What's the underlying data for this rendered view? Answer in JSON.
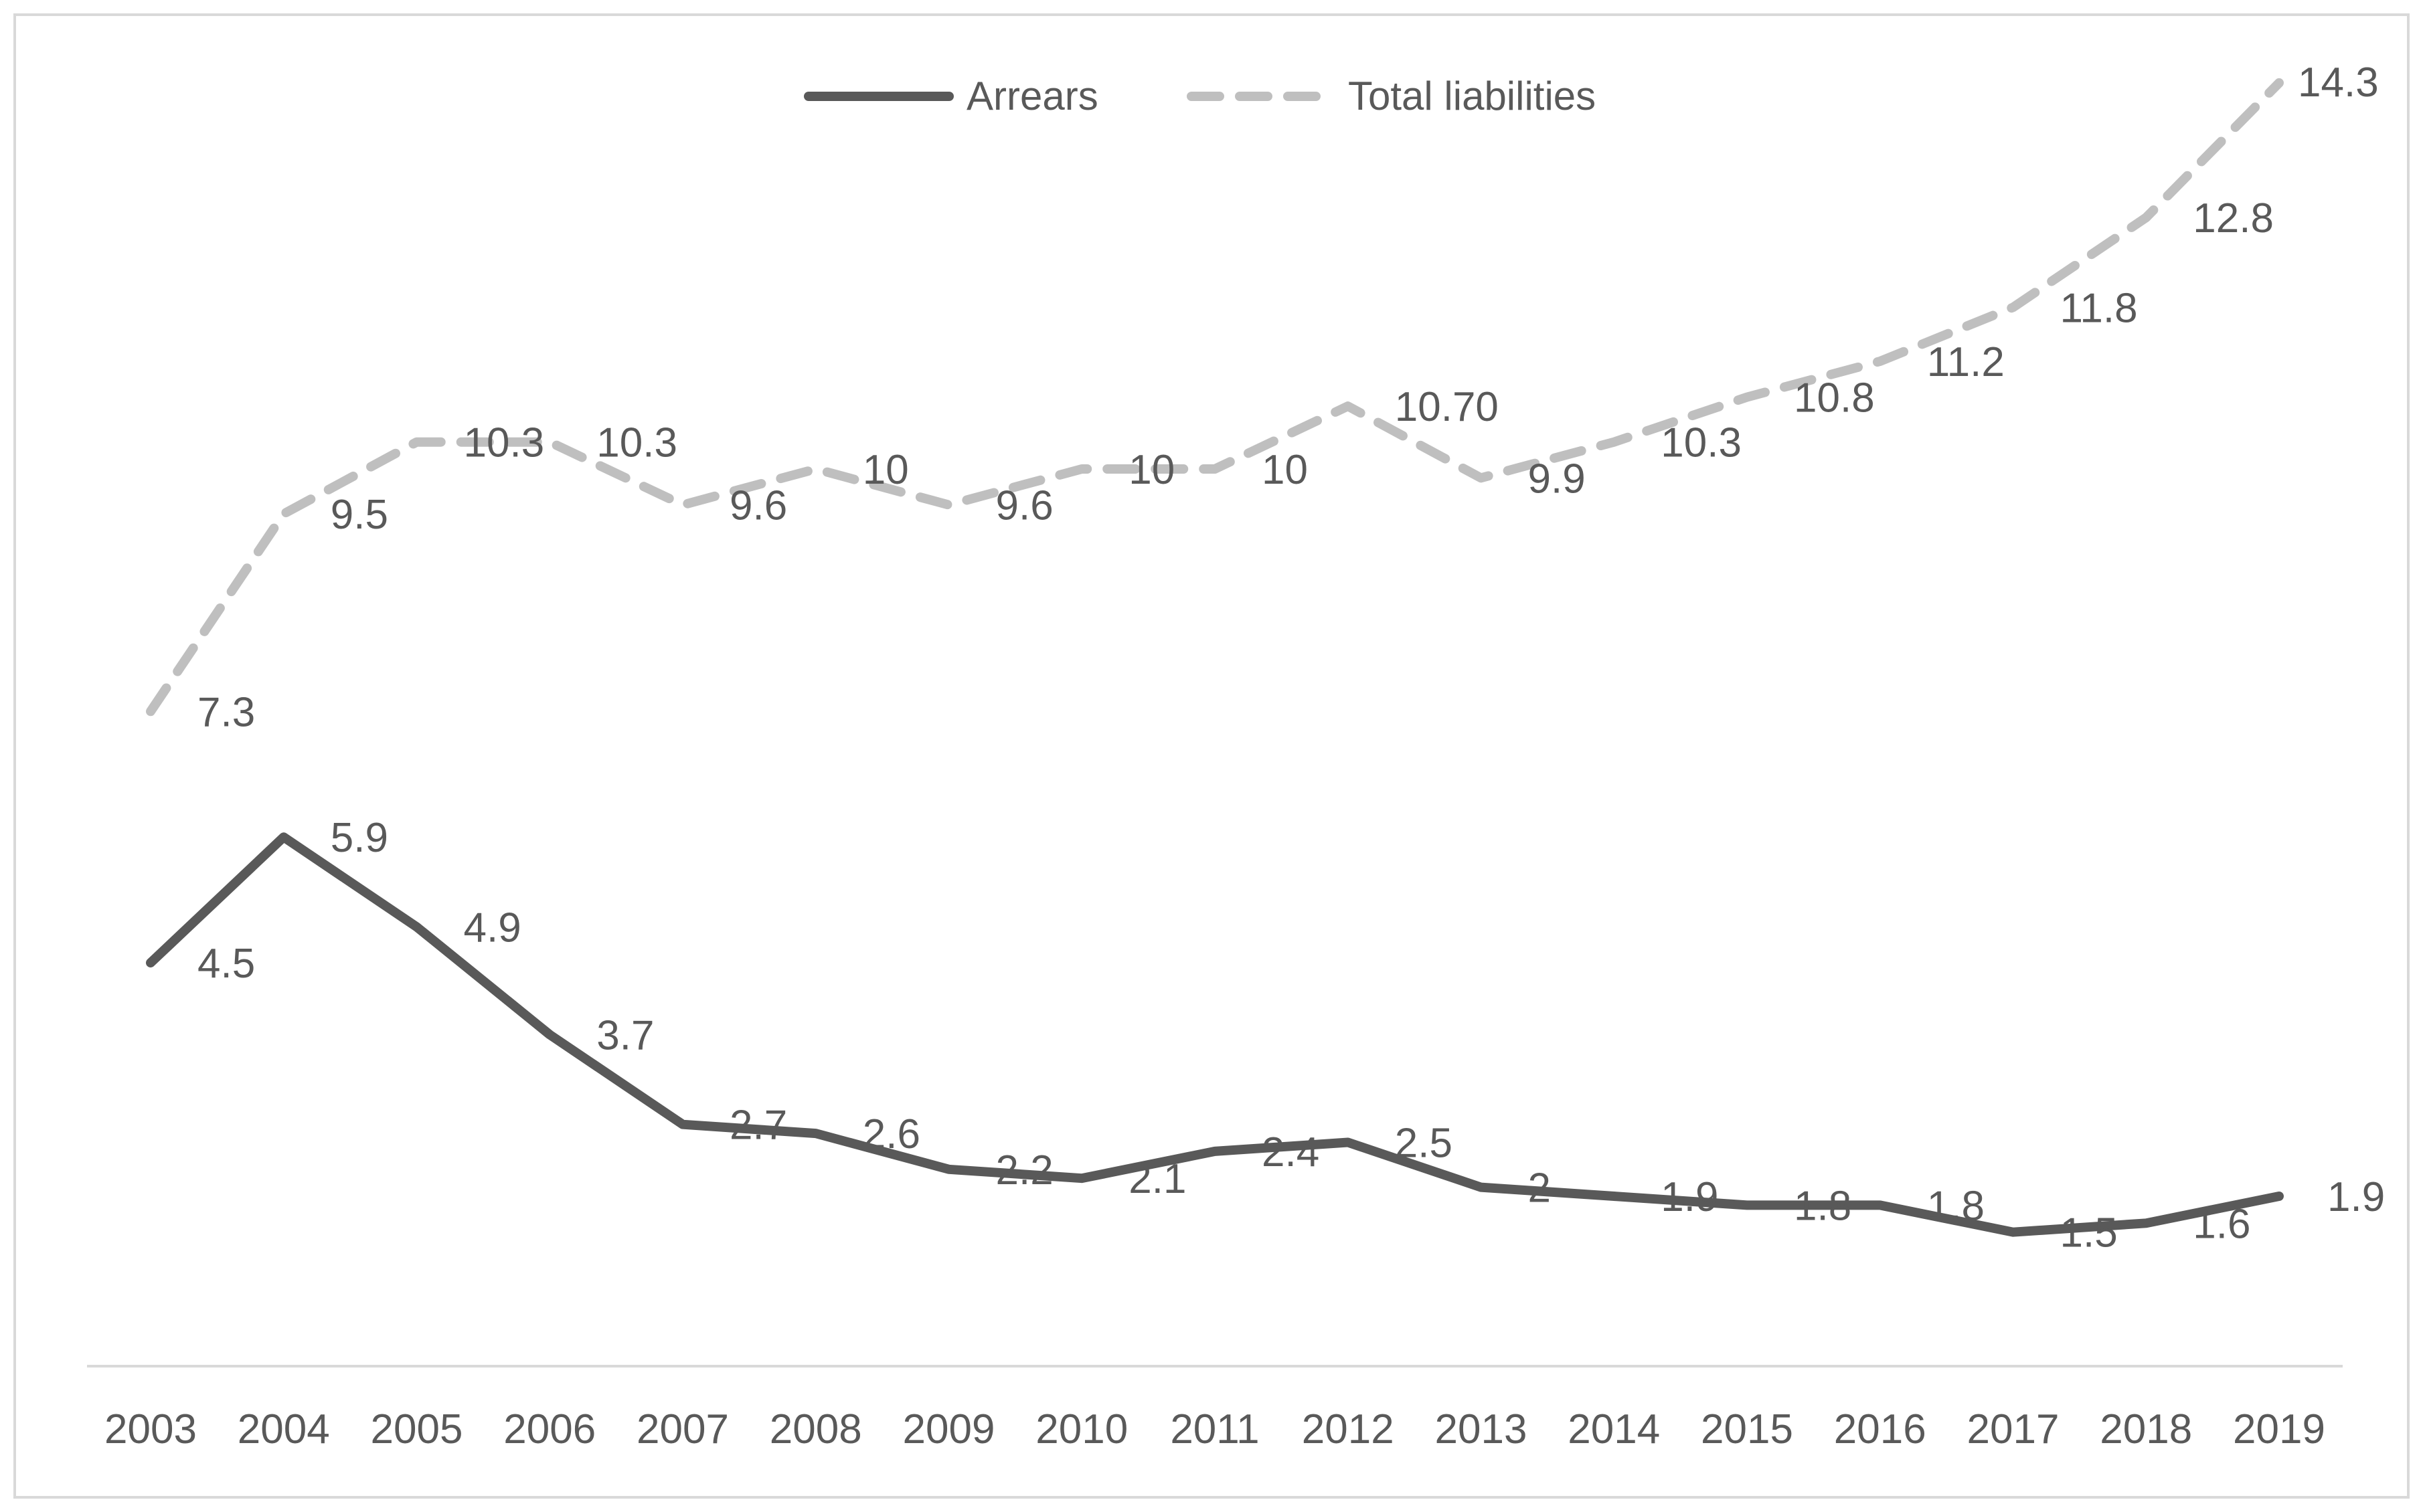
{
  "chart_data": {
    "type": "line",
    "title": "",
    "xlabel": "",
    "ylabel": "",
    "ylim": [
      0,
      15
    ],
    "grid": false,
    "legend_position": "top-center",
    "categories": [
      "2003",
      "2004",
      "2005",
      "2006",
      "2007",
      "2008",
      "2009",
      "2010",
      "2011",
      "2012",
      "2013",
      "2014",
      "2015",
      "2016",
      "2017",
      "2018",
      "2019"
    ],
    "series": [
      {
        "name": "Arrears",
        "style": "solid",
        "color": "#595959",
        "values": [
          4.5,
          5.9,
          4.9,
          3.7,
          2.7,
          2.6,
          2.2,
          2.1,
          2.4,
          2.5,
          2.0,
          1.9,
          1.8,
          1.8,
          1.5,
          1.6,
          1.9
        ],
        "labels": [
          "4.5",
          "5.9",
          "4.9",
          "3.7",
          "2.7",
          "2.6",
          "2.2",
          "2.1",
          "2.4",
          "2.5",
          "2",
          "1.9",
          "1.8",
          "1.8",
          "1.5",
          "1.6",
          "1.9"
        ]
      },
      {
        "name": "Total liabilities",
        "style": "dashed",
        "color": "#bfbfbf",
        "values": [
          7.3,
          9.5,
          10.3,
          10.3,
          9.6,
          10.0,
          9.6,
          10.0,
          10.0,
          10.7,
          9.9,
          10.3,
          10.8,
          11.2,
          11.8,
          12.8,
          14.3
        ],
        "labels": [
          "7.3",
          "9.5",
          "10.3",
          "10.3",
          "9.6",
          "10",
          "9.6",
          "10",
          "10",
          "10.70",
          "9.9",
          "10.3",
          "10.8",
          "11.2",
          "11.8",
          "12.8",
          "14.3"
        ]
      }
    ]
  }
}
